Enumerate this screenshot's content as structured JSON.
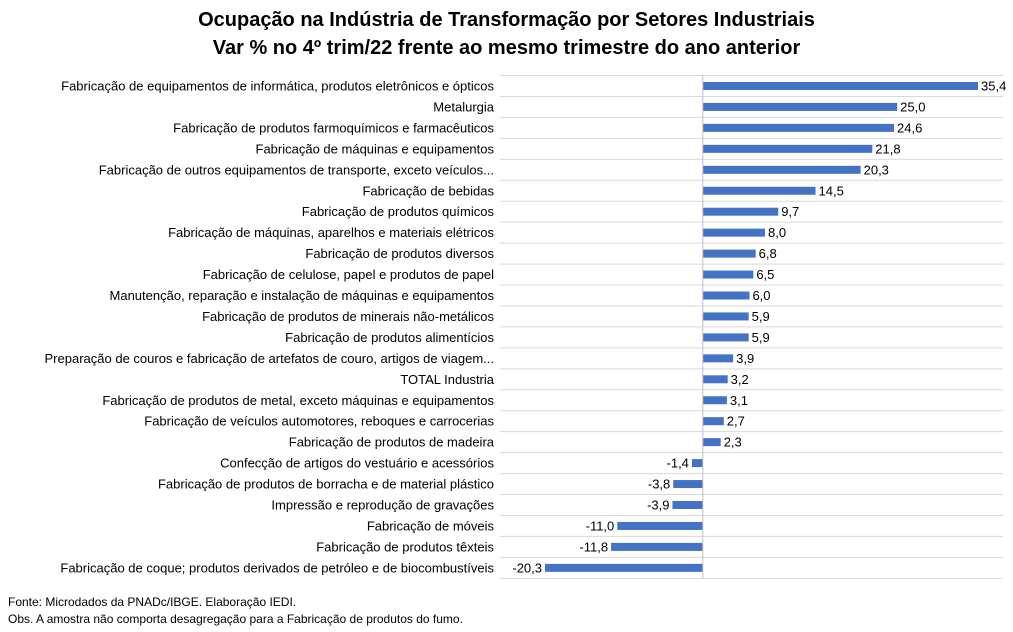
{
  "chart_data": {
    "type": "bar",
    "orientation": "horizontal",
    "title": "Ocupação na Indústria de Transformação por Setores Industriais",
    "subtitle": "Var % no 4º trim/22 frente ao mesmo trimestre do ano anterior",
    "categories": [
      "Fabricação de equipamentos de informática, produtos eletrônicos e ópticos",
      "Metalurgia",
      "Fabricação de produtos farmoquímicos e farmacêuticos",
      "Fabricação de máquinas e equipamentos",
      "Fabricação de outros equipamentos de transporte, exceto veículos...",
      "Fabricação de bebidas",
      "Fabricação de produtos químicos",
      "Fabricação de máquinas, aparelhos e materiais elétricos",
      "Fabricação de produtos diversos",
      "Fabricação de celulose, papel e produtos de papel",
      "Manutenção, reparação e instalação de máquinas e equipamentos",
      "Fabricação de produtos de minerais não-metálicos",
      "Fabricação de produtos alimentícios",
      "Preparação de couros e fabricação de artefatos de couro, artigos de viagem...",
      "TOTAL Industria",
      "Fabricação de produtos de metal, exceto máquinas e equipamentos",
      "Fabricação de veículos automotores, reboques e carrocerias",
      "Fabricação de produtos de madeira",
      "Confecção de artigos do vestuário e acessórios",
      "Fabricação de produtos de borracha e de material plástico",
      "Impressão e reprodução de gravações",
      "Fabricação de móveis",
      "Fabricação de produtos têxteis",
      "Fabricação de coque; produtos derivados de petróleo e de biocombustíveis"
    ],
    "values": [
      35.4,
      25.0,
      24.6,
      21.8,
      20.3,
      14.5,
      9.7,
      8.0,
      6.8,
      6.5,
      6.0,
      5.9,
      5.9,
      3.9,
      3.2,
      3.1,
      2.7,
      2.3,
      -1.4,
      -3.8,
      -3.9,
      -11.0,
      -11.8,
      -20.3
    ],
    "value_labels": [
      "35,4",
      "25,0",
      "24,6",
      "21,8",
      "20,3",
      "14,5",
      "9,7",
      "8,0",
      "6,8",
      "6,5",
      "6,0",
      "5,9",
      "5,9",
      "3,9",
      "3,2",
      "3,1",
      "2,7",
      "2,3",
      "-1,4",
      "-3,8",
      "-3,9",
      "-11,0",
      "-11,8",
      "-20,3"
    ],
    "xlim": [
      -20.3,
      35.4
    ],
    "bar_color": "#4472c4",
    "gridlines": "horizontal",
    "gridline_color": "#d9d9d9",
    "legend": "none"
  },
  "notes": {
    "source": "Fonte: Microdados da PNADc/IBGE. Elaboração IEDI.",
    "obs": "Obs. A amostra não comporta desagregação para a Fabricação de produtos do fumo."
  }
}
